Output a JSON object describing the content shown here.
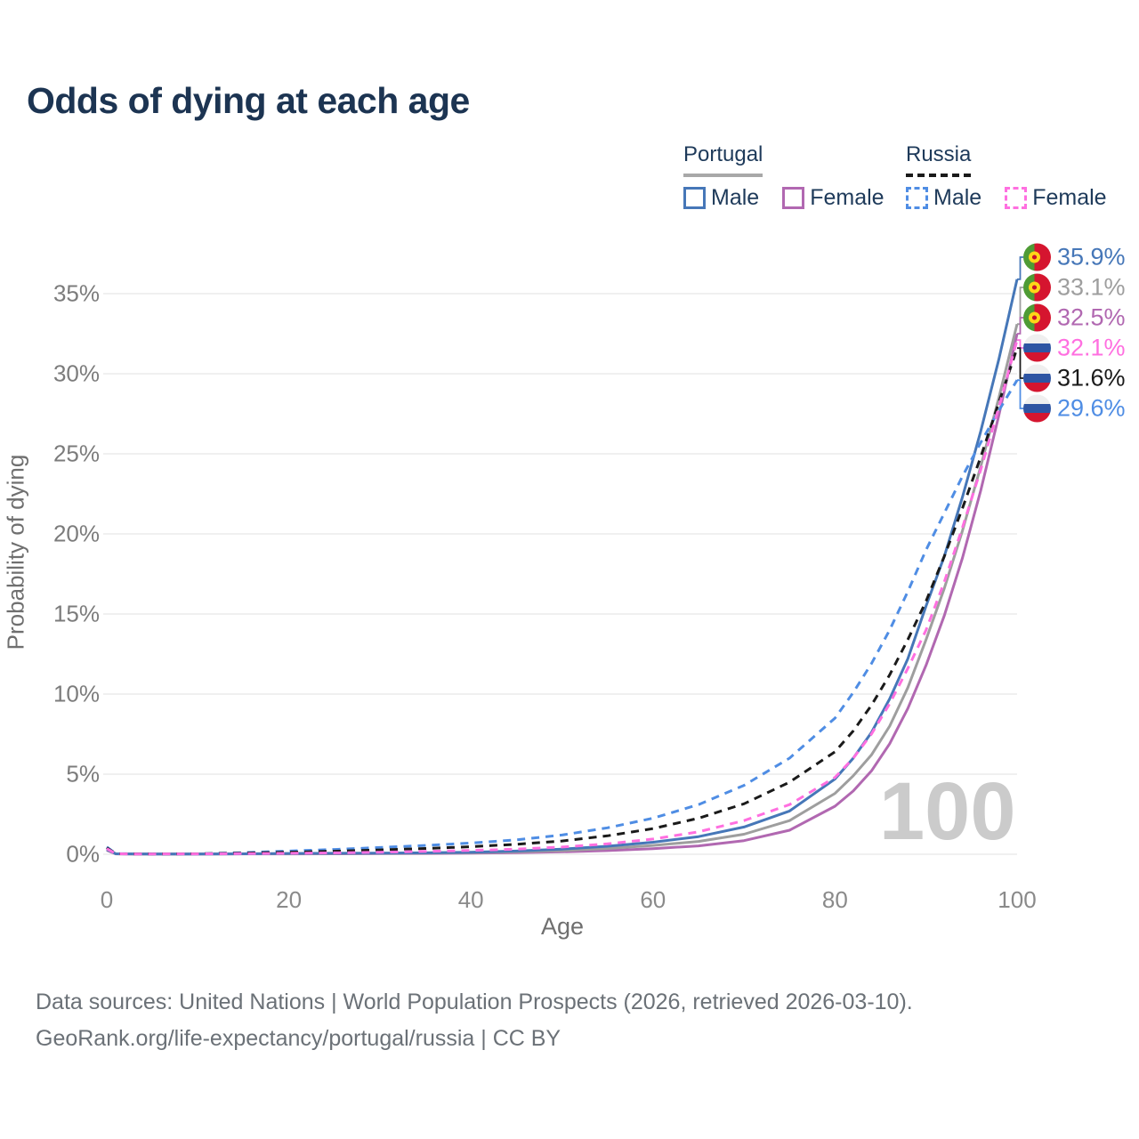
{
  "title": "Odds of dying at each age",
  "legend": {
    "groups": [
      {
        "label": "Portugal",
        "style": "solid",
        "underline_color": "#a8a8a8",
        "items": [
          {
            "label": "Male",
            "color": "#4677b8"
          },
          {
            "label": "Female",
            "color": "#b168b1"
          }
        ]
      },
      {
        "label": "Russia",
        "style": "dashed",
        "underline_color": "#1a1a1a",
        "items": [
          {
            "label": "Male",
            "color": "#4f8de4"
          },
          {
            "label": "Female",
            "color": "#ff6fe0"
          }
        ]
      }
    ]
  },
  "watermark": "100",
  "footer": {
    "line1": "Data sources: United Nations | World Population Prospects (2026, retrieved 2026-03-10).",
    "line2": "GeoRank.org/life-expectancy/portugal/russia | CC BY"
  },
  "chart_data": {
    "type": "line",
    "title": "Odds of dying at each age",
    "xlabel": "Age",
    "ylabel": "Probability of dying",
    "xlim": [
      0,
      100
    ],
    "ylim": [
      0,
      37
    ],
    "xticks": [
      0,
      20,
      40,
      60,
      80,
      100
    ],
    "xtick_labels": [
      "0",
      "20",
      "40",
      "60",
      "80",
      "100"
    ],
    "yticks": [
      0,
      5,
      10,
      15,
      20,
      25,
      30,
      35
    ],
    "ytick_labels": [
      "0%",
      "5%",
      "10%",
      "15%",
      "20%",
      "25%",
      "30%",
      "35%"
    ],
    "grid": "horizontal",
    "legend_position": "top-right",
    "x": [
      0,
      1,
      3,
      5,
      10,
      15,
      20,
      25,
      30,
      35,
      40,
      45,
      50,
      55,
      60,
      65,
      70,
      75,
      80,
      82,
      84,
      86,
      88,
      90,
      92,
      94,
      96,
      98,
      100
    ],
    "series": [
      {
        "name": "Portugal Female",
        "country": "Portugal",
        "sex": "Female",
        "flag": "portugal",
        "color": "#b168b1",
        "dash": "solid",
        "end_label": "32.5%",
        "values": [
          0.25,
          0.02,
          0.012,
          0.01,
          0.01,
          0.02,
          0.02,
          0.03,
          0.04,
          0.05,
          0.07,
          0.1,
          0.15,
          0.23,
          0.35,
          0.52,
          0.85,
          1.5,
          3.0,
          3.95,
          5.2,
          6.9,
          9.1,
          11.8,
          14.9,
          18.5,
          22.7,
          27.4,
          32.5
        ]
      },
      {
        "name": "Portugal Both sexes",
        "country": "Portugal",
        "sex": "Both",
        "flag": "portugal",
        "color": "#9e9e9e",
        "dash": "solid",
        "end_label": "33.1%",
        "values": [
          0.28,
          0.03,
          0.015,
          0.01,
          0.01,
          0.025,
          0.035,
          0.045,
          0.055,
          0.07,
          0.1,
          0.15,
          0.23,
          0.36,
          0.55,
          0.8,
          1.25,
          2.1,
          3.8,
          4.9,
          6.2,
          8.0,
          10.4,
          13.4,
          16.6,
          20.2,
          24.2,
          28.5,
          33.1
        ]
      },
      {
        "name": "Portugal Male",
        "country": "Portugal",
        "sex": "Male",
        "flag": "portugal",
        "color": "#4677b8",
        "dash": "solid",
        "end_label": "35.9%",
        "values": [
          0.3,
          0.03,
          0.02,
          0.01,
          0.01,
          0.03,
          0.05,
          0.06,
          0.07,
          0.09,
          0.13,
          0.2,
          0.32,
          0.5,
          0.75,
          1.1,
          1.7,
          2.7,
          4.7,
          6.0,
          7.6,
          9.7,
          12.2,
          15.5,
          18.6,
          22.3,
          26.4,
          30.9,
          35.9
        ]
      },
      {
        "name": "Russia Male",
        "country": "Russia",
        "sex": "Male",
        "flag": "russia",
        "color": "#4f8de4",
        "dash": "dashed",
        "end_label": "29.6%",
        "values": [
          0.45,
          0.04,
          0.025,
          0.02,
          0.03,
          0.1,
          0.2,
          0.3,
          0.42,
          0.55,
          0.7,
          0.9,
          1.2,
          1.65,
          2.25,
          3.1,
          4.3,
          6.0,
          8.5,
          10.1,
          11.9,
          14.0,
          16.4,
          19.0,
          21.3,
          23.6,
          25.7,
          27.7,
          29.6
        ]
      },
      {
        "name": "Russia Both sexes",
        "country": "Russia",
        "sex": "Both",
        "flag": "russia",
        "color": "#1a1a1a",
        "dash": "dashed",
        "end_label": "31.6%",
        "values": [
          0.4,
          0.035,
          0.02,
          0.018,
          0.025,
          0.07,
          0.13,
          0.19,
          0.27,
          0.36,
          0.47,
          0.62,
          0.83,
          1.15,
          1.6,
          2.25,
          3.15,
          4.5,
          6.4,
          7.7,
          9.3,
          11.2,
          13.4,
          15.8,
          18.6,
          21.6,
          24.8,
          28.2,
          31.6
        ]
      },
      {
        "name": "Russia Female",
        "country": "Russia",
        "sex": "Female",
        "flag": "russia",
        "color": "#ff6fe0",
        "dash": "dashed",
        "end_label": "32.1%",
        "values": [
          0.35,
          0.03,
          0.017,
          0.015,
          0.02,
          0.04,
          0.06,
          0.09,
          0.13,
          0.18,
          0.24,
          0.32,
          0.45,
          0.65,
          0.95,
          1.4,
          2.1,
          3.1,
          4.8,
          6.0,
          7.5,
          9.4,
          11.6,
          14.0,
          17.0,
          20.4,
          24.0,
          27.9,
          32.1
        ]
      }
    ]
  }
}
